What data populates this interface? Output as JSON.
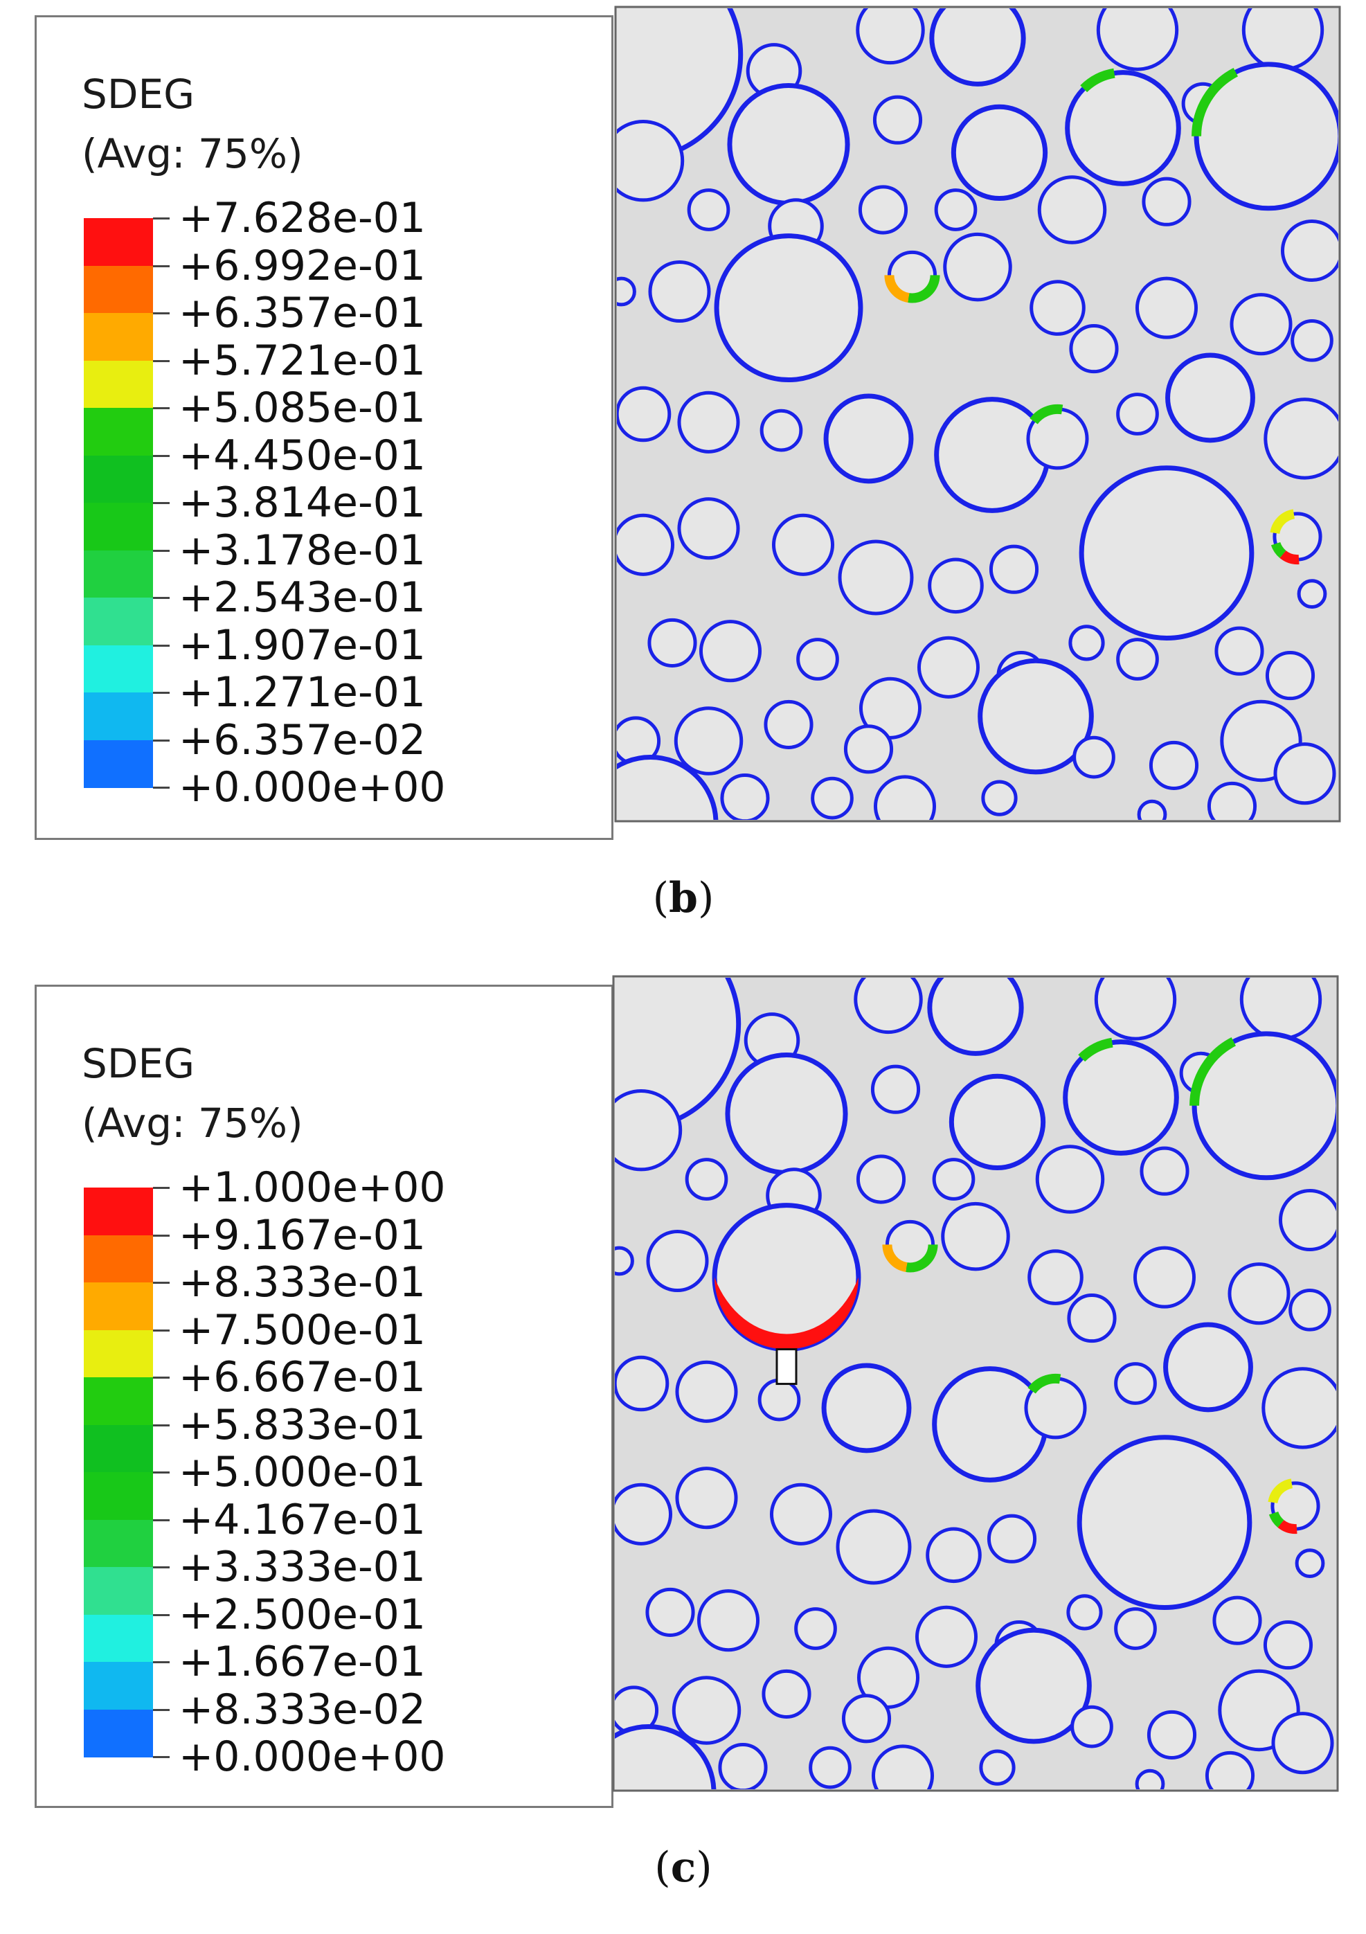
{
  "panels": [
    {
      "id": "b",
      "caption_letter": "b",
      "legend": {
        "variable": "SDEG",
        "averaging": "(Avg: 75%)",
        "values": [
          "+7.628e-01",
          "+6.992e-01",
          "+6.357e-01",
          "+5.721e-01",
          "+5.085e-01",
          "+4.450e-01",
          "+3.814e-01",
          "+3.178e-01",
          "+2.543e-01",
          "+1.907e-01",
          "+1.271e-01",
          "+6.357e-02",
          "+0.000e+00"
        ],
        "colors": [
          "#ff1010",
          "#ff6a00",
          "#ffaa00",
          "#e8ee10",
          "#22cc10",
          "#10c020",
          "#18c818",
          "#20d040",
          "#30e090",
          "#20f0e0",
          "#10b8f0",
          "#1070ff",
          "#0018ff"
        ]
      }
    },
    {
      "id": "c",
      "caption_letter": "c",
      "legend": {
        "variable": "SDEG",
        "averaging": "(Avg: 75%)",
        "values": [
          "+1.000e+00",
          "+9.167e-01",
          "+8.333e-01",
          "+7.500e-01",
          "+6.667e-01",
          "+5.833e-01",
          "+5.000e-01",
          "+4.167e-01",
          "+3.333e-01",
          "+2.500e-01",
          "+1.667e-01",
          "+8.333e-02",
          "+0.000e+00"
        ],
        "colors": [
          "#ff1010",
          "#ff6a00",
          "#ffaa00",
          "#e8ee10",
          "#22cc10",
          "#10c020",
          "#18c818",
          "#20d040",
          "#30e090",
          "#20f0e0",
          "#10b8f0",
          "#1070ff",
          "#0018ff"
        ]
      }
    }
  ],
  "mesh": {
    "inclusions": [
      [
        0.03,
        0.06,
        0.16
      ],
      [
        0.22,
        0.08,
        0.04
      ],
      [
        0.38,
        0.03,
        0.05
      ],
      [
        0.5,
        0.04,
        0.07
      ],
      [
        0.72,
        0.03,
        0.06
      ],
      [
        0.92,
        0.03,
        0.06
      ],
      [
        0.04,
        0.19,
        0.06
      ],
      [
        0.24,
        0.17,
        0.09
      ],
      [
        0.39,
        0.14,
        0.035
      ],
      [
        0.53,
        0.18,
        0.07
      ],
      [
        0.7,
        0.15,
        0.085
      ],
      [
        0.81,
        0.12,
        0.03
      ],
      [
        0.9,
        0.16,
        0.11
      ],
      [
        0.13,
        0.25,
        0.03
      ],
      [
        0.25,
        0.27,
        0.04
      ],
      [
        0.37,
        0.25,
        0.035
      ],
      [
        0.47,
        0.25,
        0.03
      ],
      [
        0.63,
        0.25,
        0.05
      ],
      [
        0.76,
        0.24,
        0.035
      ],
      [
        0.96,
        0.3,
        0.045
      ],
      [
        0.01,
        0.35,
        0.02
      ],
      [
        0.09,
        0.35,
        0.045
      ],
      [
        0.24,
        0.37,
        0.11
      ],
      [
        0.41,
        0.33,
        0.035
      ],
      [
        0.5,
        0.32,
        0.05
      ],
      [
        0.61,
        0.37,
        0.04
      ],
      [
        0.66,
        0.42,
        0.035
      ],
      [
        0.76,
        0.37,
        0.045
      ],
      [
        0.89,
        0.39,
        0.045
      ],
      [
        0.96,
        0.41,
        0.03
      ],
      [
        0.04,
        0.5,
        0.04
      ],
      [
        0.13,
        0.51,
        0.045
      ],
      [
        0.23,
        0.52,
        0.03
      ],
      [
        0.35,
        0.53,
        0.065
      ],
      [
        0.52,
        0.55,
        0.085
      ],
      [
        0.61,
        0.53,
        0.045
      ],
      [
        0.72,
        0.5,
        0.03
      ],
      [
        0.82,
        0.48,
        0.065
      ],
      [
        0.95,
        0.53,
        0.06
      ],
      [
        0.04,
        0.66,
        0.045
      ],
      [
        0.13,
        0.64,
        0.045
      ],
      [
        0.26,
        0.66,
        0.045
      ],
      [
        0.36,
        0.7,
        0.055
      ],
      [
        0.47,
        0.71,
        0.04
      ],
      [
        0.55,
        0.69,
        0.035
      ],
      [
        0.76,
        0.67,
        0.13
      ],
      [
        0.94,
        0.65,
        0.035
      ],
      [
        0.96,
        0.72,
        0.02
      ],
      [
        0.08,
        0.78,
        0.035
      ],
      [
        0.16,
        0.79,
        0.045
      ],
      [
        0.28,
        0.8,
        0.03
      ],
      [
        0.38,
        0.86,
        0.045
      ],
      [
        0.46,
        0.81,
        0.045
      ],
      [
        0.56,
        0.82,
        0.035
      ],
      [
        0.65,
        0.78,
        0.025
      ],
      [
        0.72,
        0.8,
        0.03
      ],
      [
        0.86,
        0.79,
        0.035
      ],
      [
        0.93,
        0.82,
        0.035
      ],
      [
        0.03,
        0.9,
        0.035
      ],
      [
        0.13,
        0.9,
        0.05
      ],
      [
        0.24,
        0.88,
        0.035
      ],
      [
        0.35,
        0.91,
        0.035
      ],
      [
        0.58,
        0.87,
        0.085
      ],
      [
        0.66,
        0.92,
        0.03
      ],
      [
        0.77,
        0.93,
        0.035
      ],
      [
        0.89,
        0.9,
        0.06
      ],
      [
        0.95,
        0.94,
        0.045
      ],
      [
        0.05,
        1.0,
        0.1
      ],
      [
        0.18,
        0.97,
        0.035
      ],
      [
        0.3,
        0.97,
        0.03
      ],
      [
        0.4,
        0.98,
        0.045
      ],
      [
        0.53,
        0.97,
        0.025
      ],
      [
        0.74,
        0.99,
        0.02
      ],
      [
        0.85,
        0.98,
        0.035
      ]
    ]
  }
}
